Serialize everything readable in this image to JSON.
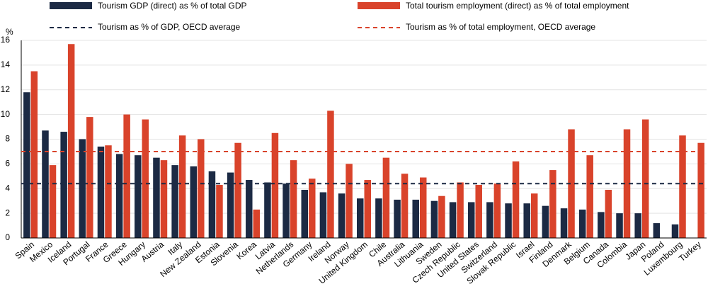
{
  "chart_data": {
    "type": "bar",
    "y_unit": "%",
    "categories": [
      "Spain",
      "Mexico",
      "Iceland",
      "Portugal",
      "France",
      "Greece",
      "Hungary",
      "Austria",
      "Italy",
      "New Zealand",
      "Estonia",
      "Slovenia",
      "Korea",
      "Latvia",
      "Netherlands",
      "Germany",
      "Ireland",
      "Norway",
      "United Kingdom",
      "Chile",
      "Australia",
      "Lithuania",
      "Sweden",
      "Czech Republic",
      "United States",
      "Switzerland",
      "Slovak Republic",
      "Israel",
      "Finland",
      "Denmark",
      "Belgium",
      "Canada",
      "Colombia",
      "Japan",
      "Poland",
      "Luxembourg",
      "Turkey"
    ],
    "series": [
      {
        "name": "Tourism GDP (direct) as % of total GDP",
        "color": "#1c2a44",
        "values": [
          11.8,
          8.7,
          8.6,
          8.0,
          7.4,
          6.8,
          6.7,
          6.5,
          5.9,
          5.8,
          5.4,
          5.3,
          4.7,
          4.5,
          4.4,
          3.9,
          3.7,
          3.6,
          3.2,
          3.2,
          3.1,
          3.1,
          3.0,
          2.9,
          2.9,
          2.9,
          2.8,
          2.8,
          2.6,
          2.4,
          2.3,
          2.1,
          2.0,
          2.0,
          1.2,
          1.1,
          null
        ]
      },
      {
        "name": "Total tourism employment (direct) as % of total employment",
        "color": "#d9432b",
        "values": [
          13.5,
          5.9,
          15.7,
          9.8,
          7.5,
          10.0,
          9.6,
          6.3,
          8.3,
          8.0,
          4.3,
          7.7,
          2.3,
          8.5,
          6.3,
          4.8,
          10.3,
          6.0,
          4.7,
          6.5,
          5.2,
          4.9,
          3.4,
          4.5,
          4.3,
          4.4,
          6.2,
          3.6,
          5.5,
          8.8,
          6.7,
          3.9,
          8.8,
          9.6,
          null,
          8.3,
          7.7
        ]
      }
    ],
    "reference_lines": [
      {
        "name": "Tourism as % of GDP, OECD average",
        "color": "#1c2a44",
        "value": 4.4
      },
      {
        "name": "Tourism as % of total employment, OECD average",
        "color": "#d9432b",
        "value": 7.0
      }
    ],
    "ylim": [
      0,
      16
    ],
    "yticks": [
      0,
      2,
      4,
      6,
      8,
      10,
      12,
      14,
      16
    ],
    "grid": true
  }
}
